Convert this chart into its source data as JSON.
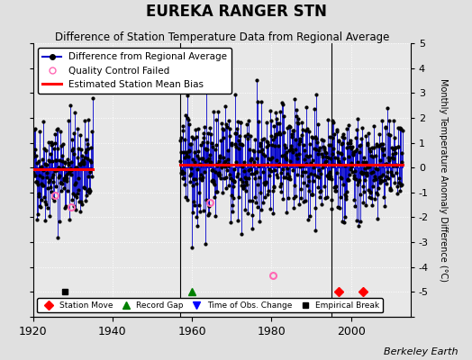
{
  "title": "EUREKA RANGER STN",
  "subtitle": "Difference of Station Temperature Data from Regional Average",
  "ylabel": "Monthly Temperature Anomaly Difference (°C)",
  "credit": "Berkeley Earth",
  "xlim": [
    1920,
    2015
  ],
  "ylim": [
    -6,
    5
  ],
  "yticks": [
    -6,
    -5,
    -4,
    -3,
    -2,
    -1,
    0,
    1,
    2,
    3,
    4,
    5
  ],
  "xticks": [
    1920,
    1940,
    1960,
    1980,
    2000
  ],
  "bg_color": "#e0e0e0",
  "plot_bg_color": "#e8e8e8",
  "data_color": "#0000cc",
  "bias_color": "#ff0000",
  "marker_color": "#000000",
  "qc_color": "#ff69b4",
  "segment1_start": 1920.0,
  "segment1_end": 1935.0,
  "segment2_start": 1957.0,
  "segment2_end": 2013.0,
  "bias1": -0.08,
  "bias2": 0.13,
  "vline_years": [
    1957,
    1995
  ],
  "station_move_years": [
    1997,
    2003
  ],
  "record_gap_years": [
    1960
  ],
  "obs_change_years": [],
  "empirical_break_years": [
    1928
  ],
  "qc_fail_positions": [
    [
      1925.5,
      -1.1
    ],
    [
      1929.5,
      -1.6
    ],
    [
      1964.5,
      -1.4
    ],
    [
      1980.3,
      -4.35
    ]
  ],
  "seed": 42
}
